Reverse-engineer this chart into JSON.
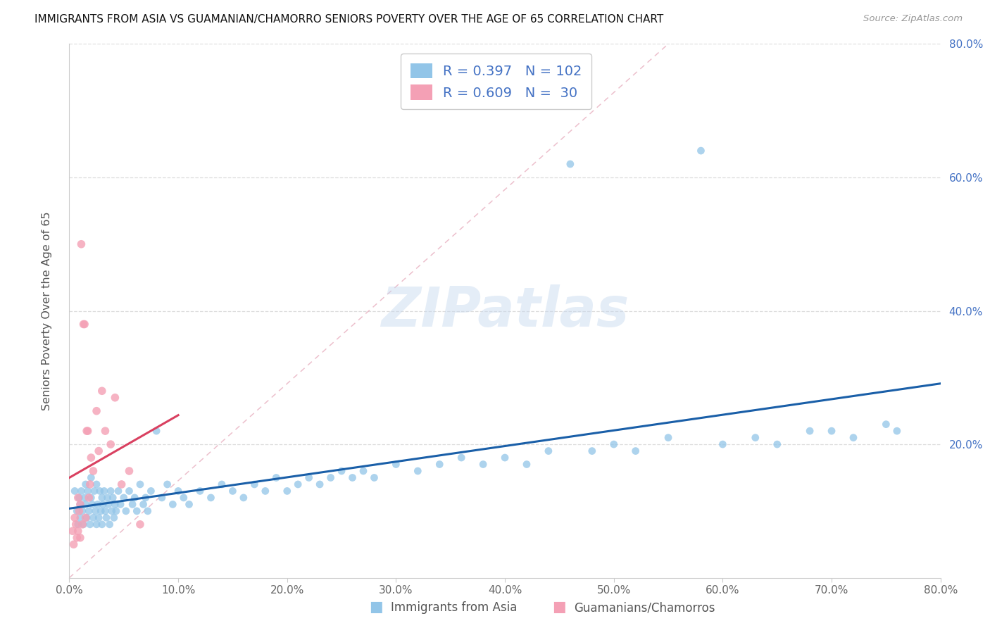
{
  "title": "IMMIGRANTS FROM ASIA VS GUAMANIAN/CHAMORRO SENIORS POVERTY OVER THE AGE OF 65 CORRELATION CHART",
  "source": "Source: ZipAtlas.com",
  "ylabel": "Seniors Poverty Over the Age of 65",
  "watermark": "ZIPatlas",
  "blue_R": 0.397,
  "blue_N": 102,
  "pink_R": 0.609,
  "pink_N": 30,
  "blue_label": "Immigrants from Asia",
  "pink_label": "Guamanians/Chamorros",
  "blue_color": "#92C5E8",
  "pink_color": "#F4A0B5",
  "blue_line_color": "#1A5FA8",
  "pink_line_color": "#D94060",
  "axis_label_color": "#4472C4",
  "grid_color": "#DDDDDD",
  "diag_color": "#E8B0C0",
  "xlim": [
    0.0,
    0.8
  ],
  "ylim": [
    0.0,
    0.8
  ],
  "xtick_positions": [
    0.0,
    0.1,
    0.2,
    0.3,
    0.4,
    0.5,
    0.6,
    0.7,
    0.8
  ],
  "xtick_labels": [
    "0.0%",
    "10.0%",
    "20.0%",
    "30.0%",
    "40.0%",
    "50.0%",
    "60.0%",
    "70.0%",
    "80.0%"
  ],
  "ytick_positions": [
    0.0,
    0.2,
    0.4,
    0.6,
    0.8
  ],
  "ytick_labels": [
    "",
    "20.0%",
    "40.0%",
    "60.0%",
    "80.0%"
  ],
  "blue_x": [
    0.005,
    0.007,
    0.008,
    0.009,
    0.01,
    0.01,
    0.011,
    0.012,
    0.013,
    0.014,
    0.015,
    0.015,
    0.016,
    0.017,
    0.018,
    0.019,
    0.02,
    0.02,
    0.021,
    0.022,
    0.023,
    0.024,
    0.025,
    0.025,
    0.026,
    0.027,
    0.028,
    0.029,
    0.03,
    0.03,
    0.031,
    0.032,
    0.033,
    0.034,
    0.035,
    0.036,
    0.037,
    0.038,
    0.039,
    0.04,
    0.041,
    0.042,
    0.043,
    0.045,
    0.047,
    0.05,
    0.052,
    0.055,
    0.058,
    0.06,
    0.062,
    0.065,
    0.068,
    0.07,
    0.072,
    0.075,
    0.08,
    0.085,
    0.09,
    0.095,
    0.1,
    0.105,
    0.11,
    0.12,
    0.13,
    0.14,
    0.15,
    0.16,
    0.17,
    0.18,
    0.19,
    0.2,
    0.21,
    0.22,
    0.23,
    0.24,
    0.25,
    0.26,
    0.27,
    0.28,
    0.3,
    0.32,
    0.34,
    0.36,
    0.38,
    0.4,
    0.42,
    0.44,
    0.46,
    0.48,
    0.5,
    0.52,
    0.55,
    0.58,
    0.6,
    0.63,
    0.65,
    0.68,
    0.7,
    0.72,
    0.75,
    0.76
  ],
  "blue_y": [
    0.13,
    0.1,
    0.08,
    0.12,
    0.11,
    0.09,
    0.13,
    0.1,
    0.08,
    0.12,
    0.11,
    0.14,
    0.09,
    0.13,
    0.1,
    0.08,
    0.12,
    0.15,
    0.11,
    0.09,
    0.13,
    0.1,
    0.08,
    0.14,
    0.11,
    0.09,
    0.13,
    0.1,
    0.12,
    0.08,
    0.11,
    0.13,
    0.1,
    0.09,
    0.12,
    0.11,
    0.08,
    0.13,
    0.1,
    0.12,
    0.09,
    0.11,
    0.1,
    0.13,
    0.11,
    0.12,
    0.1,
    0.13,
    0.11,
    0.12,
    0.1,
    0.14,
    0.11,
    0.12,
    0.1,
    0.13,
    0.22,
    0.12,
    0.14,
    0.11,
    0.13,
    0.12,
    0.11,
    0.13,
    0.12,
    0.14,
    0.13,
    0.12,
    0.14,
    0.13,
    0.15,
    0.13,
    0.14,
    0.15,
    0.14,
    0.15,
    0.16,
    0.15,
    0.16,
    0.15,
    0.17,
    0.16,
    0.17,
    0.18,
    0.17,
    0.18,
    0.17,
    0.19,
    0.62,
    0.19,
    0.2,
    0.19,
    0.21,
    0.64,
    0.2,
    0.21,
    0.2,
    0.22,
    0.22,
    0.21,
    0.23,
    0.22
  ],
  "pink_x": [
    0.003,
    0.004,
    0.005,
    0.006,
    0.007,
    0.008,
    0.008,
    0.009,
    0.01,
    0.01,
    0.011,
    0.012,
    0.013,
    0.014,
    0.015,
    0.016,
    0.017,
    0.018,
    0.019,
    0.02,
    0.022,
    0.025,
    0.027,
    0.03,
    0.033,
    0.038,
    0.042,
    0.048,
    0.055,
    0.065
  ],
  "pink_y": [
    0.07,
    0.05,
    0.09,
    0.08,
    0.06,
    0.12,
    0.07,
    0.1,
    0.11,
    0.06,
    0.5,
    0.08,
    0.38,
    0.38,
    0.09,
    0.22,
    0.22,
    0.12,
    0.14,
    0.18,
    0.16,
    0.25,
    0.19,
    0.28,
    0.22,
    0.2,
    0.27,
    0.14,
    0.16,
    0.08
  ]
}
